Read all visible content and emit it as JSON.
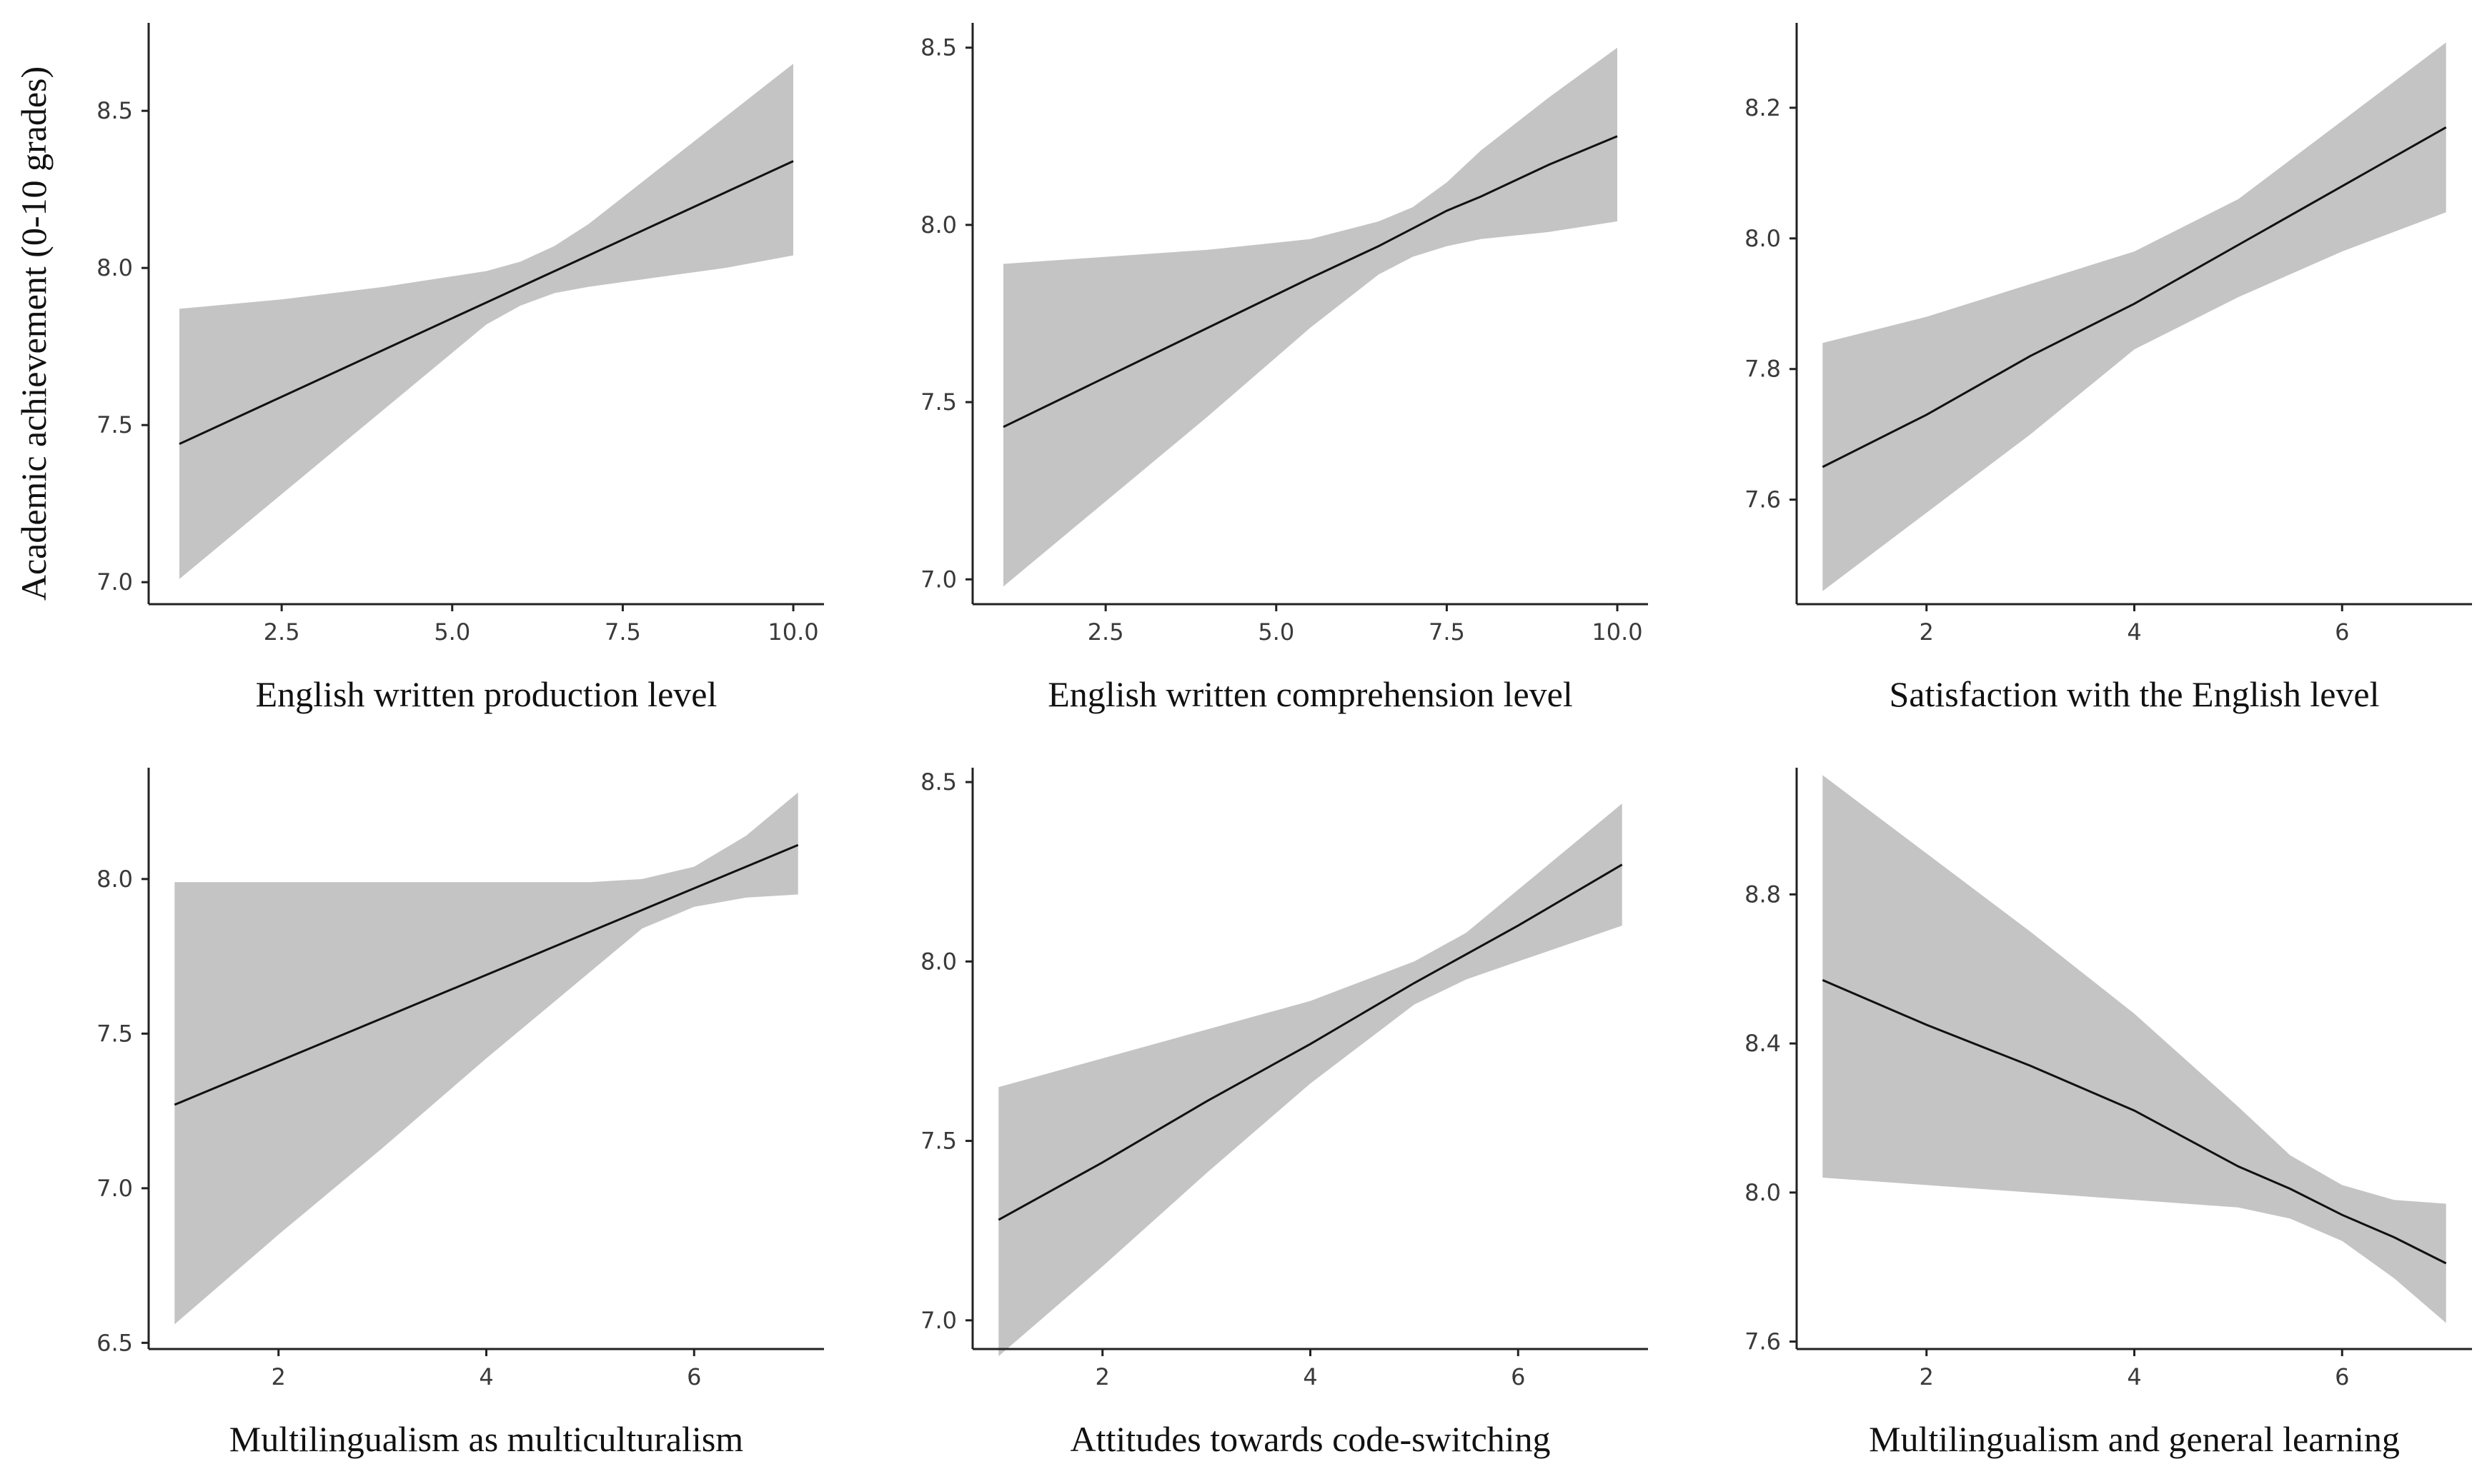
{
  "chart_data": {
    "type": "line",
    "title": "",
    "ylabel": "Academic achievement (0-10 grades)",
    "panels": [
      {
        "xlabel": "English written production level",
        "xlim": [
          0.55,
          10.45
        ],
        "ylim": [
          6.93,
          8.78
        ],
        "xticks": [
          2.5,
          5.0,
          7.5,
          10.0
        ],
        "xtick_labels": [
          "2.5",
          "5.0",
          "7.5",
          "10.0"
        ],
        "yticks": [
          7.0,
          7.5,
          8.0,
          8.5
        ],
        "ytick_labels": [
          "7.0",
          "7.5",
          "8.0",
          "8.5"
        ],
        "x": [
          1.0,
          2.5,
          4.0,
          5.5,
          6.0,
          6.5,
          7.0,
          8.0,
          9.0,
          10.0
        ],
        "fit": [
          7.44,
          7.59,
          7.74,
          7.89,
          7.94,
          7.99,
          8.04,
          8.14,
          8.24,
          8.34
        ],
        "lower": [
          7.01,
          7.28,
          7.55,
          7.82,
          7.88,
          7.92,
          7.94,
          7.97,
          8.0,
          8.04
        ],
        "upper": [
          7.87,
          7.9,
          7.94,
          7.99,
          8.02,
          8.07,
          8.14,
          8.31,
          8.48,
          8.65
        ]
      },
      {
        "xlabel": "English written comprehension level",
        "xlim": [
          0.55,
          10.45
        ],
        "ylim": [
          6.93,
          8.57
        ],
        "xticks": [
          2.5,
          5.0,
          7.5,
          10.0
        ],
        "xtick_labels": [
          "2.5",
          "5.0",
          "7.5",
          "10.0"
        ],
        "yticks": [
          7.0,
          7.5,
          8.0,
          8.5
        ],
        "ytick_labels": [
          "7.0",
          "7.5",
          "8.0",
          "8.5"
        ],
        "x": [
          1.0,
          2.5,
          4.0,
          5.5,
          6.5,
          7.0,
          7.5,
          8.0,
          9.0,
          10.0
        ],
        "fit": [
          7.43,
          7.57,
          7.71,
          7.85,
          7.94,
          7.99,
          8.04,
          8.08,
          8.17,
          8.25
        ],
        "lower": [
          6.98,
          7.22,
          7.46,
          7.71,
          7.86,
          7.91,
          7.94,
          7.96,
          7.98,
          8.01
        ],
        "upper": [
          7.89,
          7.91,
          7.93,
          7.96,
          8.01,
          8.05,
          8.12,
          8.21,
          8.36,
          8.5
        ]
      },
      {
        "xlabel": "Satisfaction with the English level",
        "xlim": [
          0.75,
          7.25
        ],
        "ylim": [
          7.44,
          8.33
        ],
        "xticks": [
          2,
          4,
          6
        ],
        "xtick_labels": [
          "2",
          "4",
          "6"
        ],
        "yticks": [
          7.6,
          7.8,
          8.0,
          8.2
        ],
        "ytick_labels": [
          "7.6",
          "7.8",
          "8.0",
          "8.2"
        ],
        "x": [
          1.0,
          2.0,
          3.0,
          4.0,
          5.0,
          6.0,
          7.0
        ],
        "fit": [
          7.65,
          7.73,
          7.82,
          7.9,
          7.99,
          8.08,
          8.17
        ],
        "lower": [
          7.46,
          7.58,
          7.7,
          7.83,
          7.91,
          7.98,
          8.04
        ],
        "upper": [
          7.84,
          7.88,
          7.93,
          7.98,
          8.06,
          8.18,
          8.3
        ]
      },
      {
        "xlabel": "Multilingualism as multiculturalism",
        "xlim": [
          0.75,
          7.25
        ],
        "ylim": [
          6.48,
          8.36
        ],
        "xticks": [
          2,
          4,
          6
        ],
        "xtick_labels": [
          "2",
          "4",
          "6"
        ],
        "yticks": [
          6.5,
          7.0,
          7.5,
          8.0
        ],
        "ytick_labels": [
          "6.5",
          "7.0",
          "7.5",
          "8.0"
        ],
        "x": [
          1.0,
          2.0,
          3.0,
          4.0,
          5.0,
          5.5,
          6.0,
          6.5,
          7.0
        ],
        "fit": [
          7.27,
          7.41,
          7.55,
          7.69,
          7.83,
          7.9,
          7.97,
          8.04,
          8.11
        ],
        "lower": [
          6.56,
          6.85,
          7.13,
          7.42,
          7.7,
          7.84,
          7.91,
          7.94,
          7.95
        ],
        "upper": [
          7.99,
          7.99,
          7.99,
          7.99,
          7.99,
          8.0,
          8.04,
          8.14,
          8.28
        ]
      },
      {
        "xlabel": "Attitudes towards code-switching",
        "xlim": [
          0.75,
          7.25
        ],
        "ylim": [
          6.92,
          8.54
        ],
        "xticks": [
          2,
          4,
          6
        ],
        "xtick_labels": [
          "2",
          "4",
          "6"
        ],
        "yticks": [
          7.0,
          7.5,
          8.0,
          8.5
        ],
        "ytick_labels": [
          "7.0",
          "7.5",
          "8.0",
          "8.5"
        ],
        "x": [
          1.0,
          2.0,
          3.0,
          4.0,
          5.0,
          5.5,
          6.0,
          7.0
        ],
        "fit": [
          7.28,
          7.44,
          7.61,
          7.77,
          7.94,
          8.02,
          8.1,
          8.27
        ],
        "lower": [
          6.9,
          7.15,
          7.41,
          7.66,
          7.88,
          7.95,
          8.0,
          8.1
        ],
        "upper": [
          7.65,
          7.73,
          7.81,
          7.89,
          8.0,
          8.08,
          8.2,
          8.44
        ]
      },
      {
        "xlabel": "Multilingualism and general learning",
        "xlim": [
          0.75,
          7.25
        ],
        "ylim": [
          7.58,
          9.14
        ],
        "xticks": [
          2,
          4,
          6
        ],
        "xtick_labels": [
          "2",
          "4",
          "6"
        ],
        "yticks": [
          7.6,
          8.0,
          8.4,
          8.8
        ],
        "ytick_labels": [
          "7.6",
          "8.0",
          "8.4",
          "8.8"
        ],
        "x": [
          1.0,
          2.0,
          3.0,
          4.0,
          5.0,
          5.5,
          6.0,
          6.5,
          7.0
        ],
        "fit": [
          8.57,
          8.45,
          8.34,
          8.22,
          8.07,
          8.01,
          7.94,
          7.88,
          7.81
        ],
        "lower": [
          8.04,
          8.02,
          8.0,
          7.98,
          7.96,
          7.93,
          7.87,
          7.77,
          7.65
        ],
        "upper": [
          9.12,
          8.91,
          8.7,
          8.48,
          8.23,
          8.1,
          8.02,
          7.98,
          7.97
        ]
      }
    ]
  }
}
